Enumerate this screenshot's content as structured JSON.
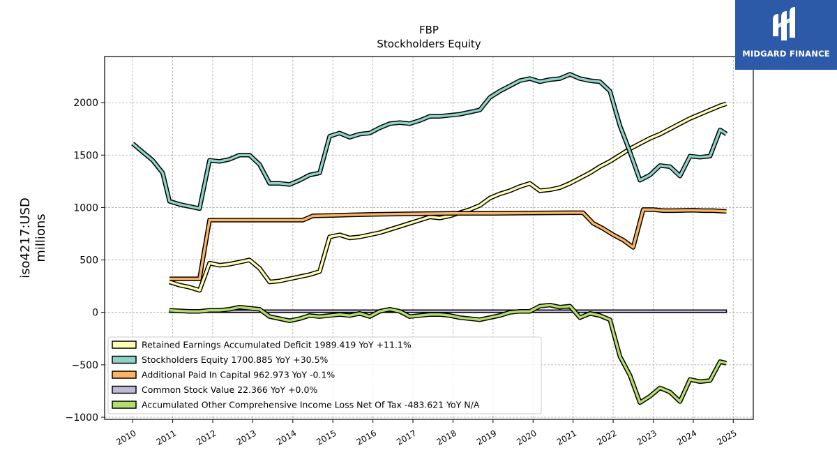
{
  "chart_data": {
    "type": "line",
    "title": "FBP",
    "subtitle": "Stockholders  Equity",
    "ylabel_line1": "iso4217:USD",
    "ylabel_line2": "millions",
    "xlim": [
      2009.3,
      2025.5
    ],
    "ylim": [
      -1020,
      2440
    ],
    "grid": true,
    "legend_position": "lower-left",
    "x_ticks": [
      2010,
      2011,
      2012,
      2013,
      2014,
      2015,
      2016,
      2017,
      2018,
      2019,
      2020,
      2021,
      2022,
      2023,
      2024,
      2025
    ],
    "x_tick_labels": [
      "2010",
      "2011",
      "2012",
      "2013",
      "2014",
      "2015",
      "2016",
      "2017",
      "2018",
      "2019",
      "2020",
      "2021",
      "2022",
      "2023",
      "2024",
      "2025"
    ],
    "y_ticks": [
      2000,
      1500,
      1000,
      500,
      0,
      -500,
      -1000
    ],
    "y_tick_labels": [
      "2000",
      "1500",
      "1000",
      "500",
      "0",
      "−500",
      "−1000"
    ],
    "series": [
      {
        "name": "Retained Earnings Accumulated Deficit",
        "legend_label": "Retained Earnings Accumulated Deficit  1989.419 YoY +11.1%",
        "color": "#ffffb3",
        "x": [
          2010.92,
          2011.17,
          2011.42,
          2011.67,
          2011.92,
          2012.17,
          2012.42,
          2012.67,
          2012.92,
          2013.17,
          2013.42,
          2013.67,
          2013.92,
          2014.17,
          2014.42,
          2014.67,
          2014.92,
          2015.17,
          2015.42,
          2015.67,
          2015.92,
          2016.17,
          2016.42,
          2016.67,
          2016.92,
          2017.17,
          2017.42,
          2017.67,
          2017.92,
          2018.17,
          2018.42,
          2018.67,
          2018.92,
          2019.17,
          2019.42,
          2019.67,
          2019.92,
          2020.17,
          2020.42,
          2020.67,
          2020.92,
          2021.17,
          2021.42,
          2021.67,
          2021.92,
          2022.17,
          2022.42,
          2022.67,
          2022.92,
          2023.17,
          2023.42,
          2023.67,
          2023.92,
          2024.17,
          2024.42,
          2024.67,
          2024.83
        ],
        "y": [
          290,
          260,
          240,
          210,
          470,
          450,
          460,
          480,
          500,
          420,
          290,
          300,
          320,
          340,
          360,
          390,
          720,
          740,
          710,
          720,
          740,
          760,
          790,
          820,
          850,
          880,
          910,
          900,
          920,
          950,
          980,
          1020,
          1090,
          1130,
          1160,
          1200,
          1230,
          1160,
          1170,
          1190,
          1230,
          1280,
          1330,
          1390,
          1440,
          1500,
          1560,
          1610,
          1660,
          1700,
          1750,
          1800,
          1850,
          1890,
          1930,
          1970,
          1989.419
        ]
      },
      {
        "name": "Stockholders Equity",
        "legend_label": "Stockholders Equity  1700.885 YoY +30.5%",
        "color": "#8dd3c7",
        "x": [
          2010.0,
          2010.25,
          2010.5,
          2010.75,
          2010.92,
          2011.17,
          2011.42,
          2011.67,
          2011.92,
          2012.17,
          2012.42,
          2012.67,
          2012.92,
          2013.17,
          2013.42,
          2013.67,
          2013.92,
          2014.17,
          2014.42,
          2014.67,
          2014.92,
          2015.17,
          2015.42,
          2015.67,
          2015.92,
          2016.17,
          2016.42,
          2016.67,
          2016.92,
          2017.17,
          2017.42,
          2017.67,
          2017.92,
          2018.17,
          2018.42,
          2018.67,
          2018.92,
          2019.17,
          2019.42,
          2019.67,
          2019.92,
          2020.17,
          2020.42,
          2020.67,
          2020.92,
          2021.17,
          2021.42,
          2021.67,
          2021.92,
          2022.17,
          2022.42,
          2022.67,
          2022.92,
          2023.17,
          2023.42,
          2023.67,
          2023.92,
          2024.17,
          2024.42,
          2024.67,
          2024.83
        ],
        "y": [
          1610,
          1530,
          1450,
          1330,
          1060,
          1030,
          1010,
          990,
          1450,
          1440,
          1460,
          1500,
          1500,
          1410,
          1230,
          1230,
          1220,
          1260,
          1310,
          1330,
          1680,
          1710,
          1670,
          1700,
          1710,
          1760,
          1800,
          1810,
          1800,
          1830,
          1870,
          1870,
          1880,
          1890,
          1910,
          1930,
          2050,
          2110,
          2160,
          2210,
          2230,
          2200,
          2220,
          2230,
          2270,
          2230,
          2210,
          2200,
          2110,
          1780,
          1530,
          1260,
          1310,
          1400,
          1390,
          1300,
          1490,
          1480,
          1490,
          1740,
          1700.885
        ]
      },
      {
        "name": "Additional Paid In Capital",
        "legend_label": "Additional Paid In Capital  962.973 YoY -0.1%",
        "color": "#fdb462",
        "x": [
          2010.92,
          2011.17,
          2011.42,
          2011.67,
          2011.92,
          2012.42,
          2012.92,
          2013.42,
          2013.92,
          2014.25,
          2014.5,
          2015.0,
          2015.5,
          2016.0,
          2017.0,
          2018.0,
          2019.0,
          2020.0,
          2020.92,
          2021.25,
          2021.5,
          2021.75,
          2022.0,
          2022.25,
          2022.5,
          2022.75,
          2023.0,
          2023.25,
          2023.5,
          2024.0,
          2024.25,
          2024.5,
          2024.83
        ],
        "y": [
          320,
          320,
          320,
          320,
          880,
          880,
          880,
          880,
          880,
          880,
          920,
          925,
          930,
          935,
          940,
          945,
          945,
          948,
          950,
          950,
          850,
          800,
          740,
          690,
          620,
          980,
          980,
          970,
          970,
          975,
          970,
          970,
          962.973
        ]
      },
      {
        "name": "Common Stock Value",
        "legend_label": "Common Stock Value  22.366 YoY +0.0%",
        "color": "#bebada",
        "x": [
          2010.92,
          2011.5,
          2011.92,
          2024.83
        ],
        "y": [
          22.366,
          22.366,
          22.366,
          22.366
        ],
        "fill_to_zero": true
      },
      {
        "name": "Accumulated Other Comprehensive Income Loss Net Of Tax",
        "legend_label": "Accumulated Other Comprehensive Income Loss Net Of Tax  -483.621 YoY N/A",
        "color": "#b3de69",
        "x": [
          2010.92,
          2011.17,
          2011.42,
          2011.67,
          2011.92,
          2012.17,
          2012.42,
          2012.67,
          2012.92,
          2013.17,
          2013.42,
          2013.67,
          2013.92,
          2014.17,
          2014.42,
          2014.67,
          2014.92,
          2015.17,
          2015.42,
          2015.67,
          2015.92,
          2016.17,
          2016.42,
          2016.67,
          2016.92,
          2017.17,
          2017.42,
          2017.67,
          2017.92,
          2018.17,
          2018.42,
          2018.67,
          2018.92,
          2019.17,
          2019.42,
          2019.67,
          2019.92,
          2020.17,
          2020.42,
          2020.67,
          2020.92,
          2021.17,
          2021.42,
          2021.67,
          2021.92,
          2022.17,
          2022.42,
          2022.67,
          2022.92,
          2023.17,
          2023.42,
          2023.67,
          2023.92,
          2024.17,
          2024.42,
          2024.67,
          2024.83
        ],
        "y": [
          20,
          15,
          10,
          10,
          20,
          20,
          30,
          50,
          40,
          30,
          -40,
          -60,
          -80,
          -60,
          -30,
          -40,
          -30,
          -20,
          -30,
          -10,
          -40,
          10,
          30,
          10,
          -40,
          -30,
          -20,
          -20,
          -30,
          -50,
          -60,
          -70,
          -50,
          -30,
          0,
          10,
          10,
          60,
          70,
          50,
          60,
          -50,
          -10,
          -30,
          -70,
          -420,
          -600,
          -860,
          -800,
          -720,
          -760,
          -850,
          -640,
          -660,
          -650,
          -470,
          -483.621
        ]
      }
    ]
  },
  "logo": {
    "text": "MIDGARD FINANCE",
    "color": "#2c5aa8"
  }
}
